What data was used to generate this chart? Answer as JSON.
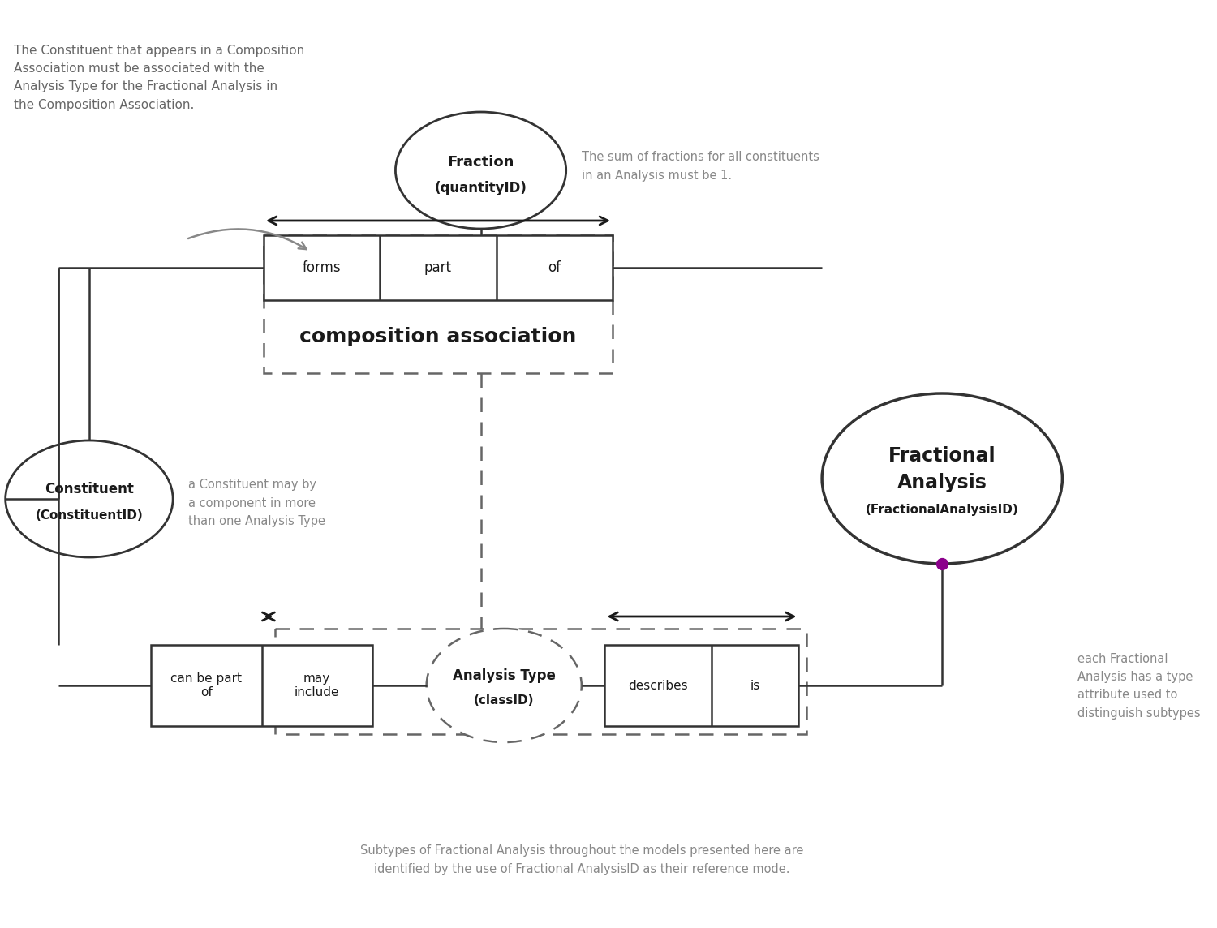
{
  "bg_color": "#ffffff",
  "text_color_dark": "#1a1a1a",
  "text_color_gray": "#888888",
  "line_color": "#333333",
  "dashed_line_color": "#666666",
  "purple_dot_color": "#8b008b",
  "annotation_topleft": "The Constituent that appears in a Composition\nAssociation must be associated with the\nAnalysis Type for the Fractional Analysis in\nthe Composition Association.",
  "annotation_fraction": "The sum of fractions for all constituents\nin an Analysis must be 1.",
  "annotation_constituent": "a Constituent may by\na component in more\nthan one Analysis Type",
  "annotation_fractional": "each Fractional\nAnalysis has a type\nattribute used to\ndistinguish subtypes",
  "annotation_bottom": "Subtypes of Fractional Analysis throughout the models presented here are\nidentified by the use of Fractional AnalysisID as their reference mode.",
  "fraction_label_line1": "Fraction",
  "fraction_label_line2": "(quantityID)",
  "comp_assoc_role1": "forms",
  "comp_assoc_role2": "part",
  "comp_assoc_role3": "of",
  "comp_assoc_name": "composition association",
  "constituent_label_line1": "Constituent",
  "constituent_label_line2": "(ConstituentID)",
  "fractional_label_line1": "Fractional",
  "fractional_label_line2": "Analysis",
  "fractional_label_line3": "(FractionalAnalysisID)",
  "bottom_box_role1": "can be part\nof",
  "bottom_box_role2": "may\ninclude",
  "analysis_type_label_line1": "Analysis Type",
  "analysis_type_label_line2": "(classID)",
  "right_box_role1": "describes",
  "right_box_role2": "is"
}
